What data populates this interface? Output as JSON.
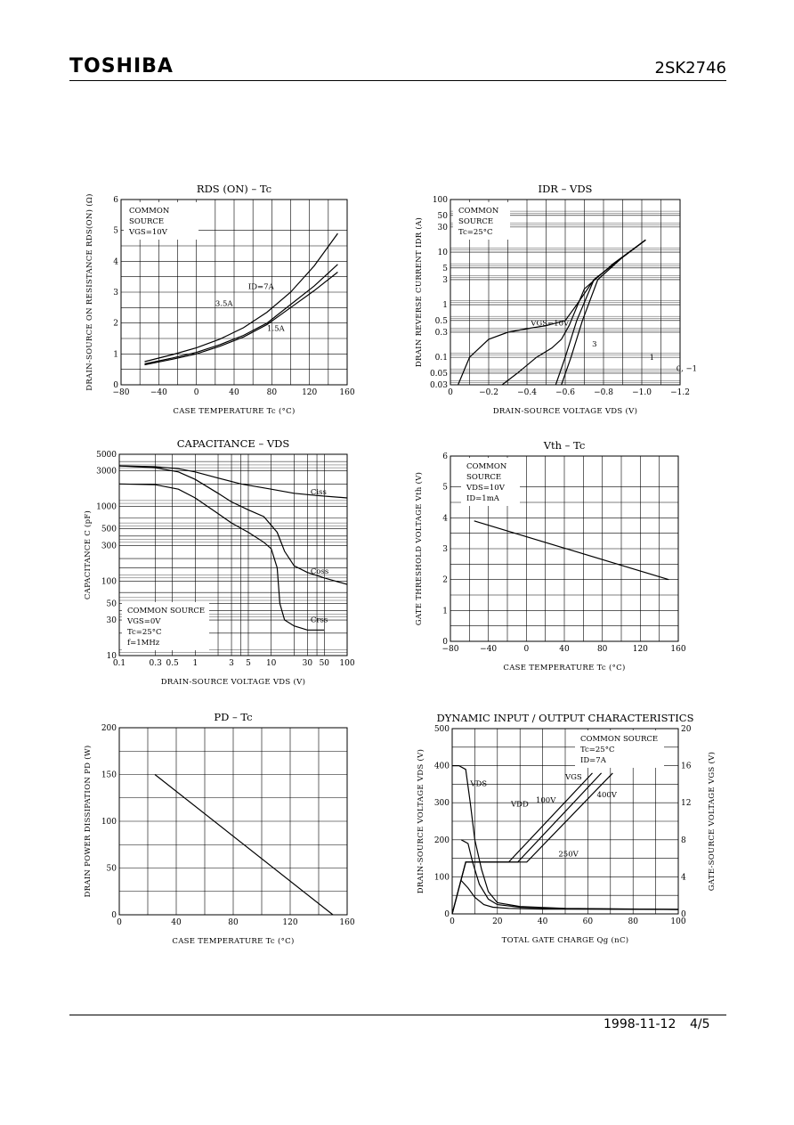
{
  "header": {
    "brand": "TOSHIBA",
    "part_number": "2SK2746"
  },
  "footer": {
    "date": "1998-11-12",
    "page": "4/5"
  },
  "chart_data": [
    {
      "id": "rds",
      "type": "line",
      "title": "RDS (ON) – Tc",
      "xlabel": "CASE TEMPERATURE   Tc   (°C)",
      "ylabel": "DRAIN-SOURCE ON RESISTANCE RDS(ON) (Ω)",
      "xlim": [
        -80,
        160
      ],
      "ylim": [
        0,
        6
      ],
      "x_ticks": [
        -80,
        -40,
        0,
        40,
        80,
        120,
        160
      ],
      "y_ticks": [
        0,
        1,
        2,
        3,
        4,
        5,
        6
      ],
      "grid": true,
      "notes": [
        "COMMON",
        "SOURCE",
        "VGS=10V"
      ],
      "series": [
        {
          "name": "ID=7A",
          "x": [
            -55,
            -25,
            0,
            25,
            50,
            75,
            100,
            125,
            150
          ],
          "y": [
            0.75,
            0.98,
            1.2,
            1.48,
            1.85,
            2.35,
            3.0,
            3.85,
            4.9
          ]
        },
        {
          "name": "3.5A",
          "x": [
            -55,
            -25,
            0,
            25,
            50,
            75,
            100,
            125,
            150
          ],
          "y": [
            0.68,
            0.87,
            1.05,
            1.3,
            1.6,
            2.0,
            2.6,
            3.2,
            3.9
          ]
        },
        {
          "name": "1.5A",
          "x": [
            -55,
            -25,
            0,
            25,
            50,
            75,
            100,
            125,
            150
          ],
          "y": [
            0.65,
            0.83,
            1.0,
            1.25,
            1.55,
            1.95,
            2.5,
            3.05,
            3.65
          ]
        }
      ]
    },
    {
      "id": "idr",
      "type": "line",
      "title": "IDR – VDS",
      "xlabel": "DRAIN-SOURCE VOLTAGE   VDS   (V)",
      "ylabel": "DRAIN REVERSE CURRENT   IDR   (A)",
      "xlim": [
        0,
        -1.2
      ],
      "ylim": [
        0.03,
        100
      ],
      "y_scale": "log",
      "x_ticks": [
        0,
        -0.2,
        -0.4,
        -0.6,
        -0.8,
        -1.0,
        -1.2
      ],
      "x_tick_labels": [
        "0",
        "−0.2",
        "−0.4",
        "−0.6",
        "−0.8",
        "−1.0",
        "−1.2"
      ],
      "y_ticks": [
        0.03,
        0.05,
        0.1,
        0.3,
        0.5,
        1,
        3,
        5,
        10,
        30,
        50,
        100
      ],
      "grid": true,
      "notes": [
        "COMMON",
        "SOURCE",
        "Tc=25°C"
      ],
      "series": [
        {
          "name": "VGS=10V",
          "x": [
            -0.04,
            -0.1,
            -0.2,
            -0.3,
            -0.4,
            -0.5,
            -0.6,
            -0.66,
            -0.75,
            -0.9,
            -1.02
          ],
          "y": [
            0.03,
            0.1,
            0.22,
            0.3,
            0.35,
            0.4,
            0.5,
            1.0,
            3.0,
            8.0,
            17
          ]
        },
        {
          "name": "3",
          "x": [
            -0.27,
            -0.35,
            -0.45,
            -0.53,
            -0.58,
            -0.62,
            -0.7,
            -0.85,
            -1.02
          ],
          "y": [
            0.03,
            0.05,
            0.1,
            0.15,
            0.22,
            0.4,
            2.0,
            6.0,
            17
          ]
        },
        {
          "name": "1",
          "x": [
            -0.55,
            -0.6,
            -0.66,
            -0.75,
            -0.9,
            -1.02
          ],
          "y": [
            0.03,
            0.1,
            0.5,
            3.0,
            8.0,
            17
          ]
        },
        {
          "name": "0, −1",
          "x": [
            -0.58,
            -0.63,
            -0.69,
            -0.77,
            -0.9,
            -1.02
          ],
          "y": [
            0.03,
            0.1,
            0.5,
            3.0,
            8.0,
            17
          ]
        }
      ]
    },
    {
      "id": "cap",
      "type": "line",
      "title": "CAPACITANCE – VDS",
      "xlabel": "DRAIN-SOURCE VOLTAGE   VDS   (V)",
      "ylabel": "CAPACITANCE   C   (pF)",
      "xlim": [
        0.1,
        100
      ],
      "ylim": [
        10,
        5000
      ],
      "x_scale": "log",
      "y_scale": "log",
      "x_ticks": [
        0.1,
        0.3,
        0.5,
        1,
        3,
        5,
        10,
        30,
        50,
        100
      ],
      "y_ticks": [
        10,
        30,
        50,
        100,
        300,
        500,
        1000,
        3000,
        5000
      ],
      "y_tick_labels": [
        "10",
        "30",
        "50",
        "100",
        "300",
        "500",
        "1000",
        "3000",
        "5000"
      ],
      "grid": true,
      "notes": [
        "COMMON SOURCE",
        "VGS=0V",
        "Tc=25°C",
        "f=1MHz"
      ],
      "series": [
        {
          "name": "Ciss",
          "x": [
            0.1,
            0.3,
            0.6,
            1,
            2,
            4,
            10,
            20,
            40,
            100
          ],
          "y": [
            3500,
            3400,
            3200,
            2900,
            2400,
            2000,
            1700,
            1500,
            1400,
            1300
          ]
        },
        {
          "name": "Coss",
          "x": [
            0.1,
            0.3,
            0.6,
            1,
            2,
            3,
            5,
            8,
            12,
            15,
            20,
            30,
            50,
            100
          ],
          "y": [
            3500,
            3300,
            2900,
            2300,
            1500,
            1150,
            900,
            730,
            450,
            250,
            160,
            130,
            110,
            90
          ]
        },
        {
          "name": "Crss",
          "x": [
            0.1,
            0.3,
            0.6,
            1,
            2,
            3,
            5,
            8,
            10,
            12,
            13,
            15,
            20,
            30,
            50
          ],
          "y": [
            2000,
            1950,
            1700,
            1300,
            800,
            600,
            450,
            330,
            270,
            150,
            50,
            30,
            25,
            22,
            22
          ]
        }
      ]
    },
    {
      "id": "vth",
      "type": "line",
      "title": "Vth – Tc",
      "xlabel": "CASE TEMPERATURE   Tc   (°C)",
      "ylabel": "GATE THRESHOLD VOLTAGE   Vth   (V)",
      "xlim": [
        -80,
        160
      ],
      "ylim": [
        0,
        6
      ],
      "x_ticks": [
        -80,
        -40,
        0,
        40,
        80,
        120,
        160
      ],
      "y_ticks": [
        0,
        1,
        2,
        3,
        4,
        5,
        6
      ],
      "grid": true,
      "notes": [
        "COMMON",
        "SOURCE",
        "VDS=10V",
        "ID=1mA"
      ],
      "series": [
        {
          "name": "",
          "x": [
            -55,
            150
          ],
          "y": [
            3.9,
            2.0
          ]
        }
      ]
    },
    {
      "id": "pd",
      "type": "line",
      "title": "PD – Tc",
      "xlabel": "CASE TEMPERATURE   Tc   (°C)",
      "ylabel": "DRAIN POWER DISSIPATION   PD   (W)",
      "xlim": [
        0,
        160
      ],
      "ylim": [
        0,
        200
      ],
      "x_ticks": [
        0,
        40,
        80,
        120,
        160
      ],
      "y_ticks": [
        0,
        50,
        100,
        150,
        200
      ],
      "grid": true,
      "series": [
        {
          "name": "",
          "x": [
            25,
            150
          ],
          "y": [
            150,
            0
          ]
        }
      ]
    },
    {
      "id": "dyn",
      "type": "line",
      "title": "DYNAMIC INPUT / OUTPUT CHARACTERISTICS",
      "xlabel": "TOTAL GATE CHARGE   Qg   (nC)",
      "ylabel": "DRAIN-SOURCE VOLTAGE   VDS   (V)",
      "y2label": "GATE-SOURCE VOLTAGE   VGS   (V)",
      "xlim": [
        0,
        100
      ],
      "ylim": [
        0,
        500
      ],
      "y2lim": [
        0,
        20
      ],
      "x_ticks": [
        0,
        20,
        40,
        60,
        80,
        100
      ],
      "y_ticks": [
        0,
        100,
        200,
        300,
        400,
        500
      ],
      "y2_ticks": [
        0,
        4,
        8,
        12,
        16,
        20
      ],
      "grid": true,
      "notes": [
        "COMMON SOURCE",
        "Tc=25°C",
        "ID=7A"
      ],
      "labels": [
        "VDS",
        "VGS",
        "VDD",
        "100V",
        "250V",
        "400V"
      ],
      "series": [
        {
          "name": "VDS 400V",
          "x": [
            0,
            3,
            6,
            8,
            10,
            13,
            16,
            20,
            30,
            50,
            100
          ],
          "y": [
            400,
            400,
            390,
            300,
            200,
            120,
            60,
            30,
            20,
            15,
            12
          ]
        },
        {
          "name": "VDS 250V",
          "x": [
            4,
            7,
            9,
            12,
            16,
            20,
            30,
            50,
            100
          ],
          "y": [
            200,
            190,
            140,
            80,
            40,
            25,
            18,
            14,
            12
          ]
        },
        {
          "name": "VDS 100V",
          "x": [
            4,
            7,
            10,
            14,
            18,
            25,
            40,
            100
          ],
          "y": [
            90,
            70,
            45,
            25,
            18,
            15,
            13,
            12
          ]
        },
        {
          "name": "VGS 100V",
          "x": [
            0,
            6,
            25,
            62
          ],
          "y": [
            0,
            5.6,
            5.6,
            15.2
          ]
        },
        {
          "name": "VGS 250V",
          "x": [
            0,
            6,
            29,
            66
          ],
          "y": [
            0,
            5.6,
            5.6,
            15.2
          ]
        },
        {
          "name": "VGS 400V",
          "x": [
            0,
            6,
            33,
            71
          ],
          "y": [
            0,
            5.6,
            5.6,
            15.2
          ]
        }
      ]
    }
  ]
}
